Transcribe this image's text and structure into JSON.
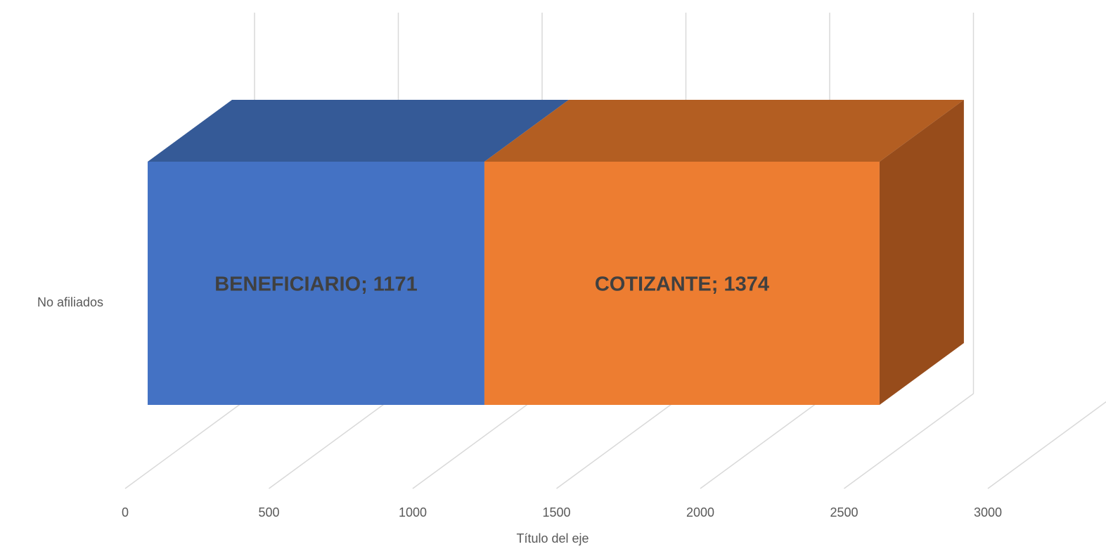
{
  "chart_data": {
    "type": "bar3d_stacked_horizontal",
    "categories": [
      "No afiliados"
    ],
    "series": [
      {
        "name": "BENEFICIARIO",
        "color": "#4472c4",
        "top_color": "#355a97",
        "side_color": "#2f5088",
        "values": [
          1171
        ],
        "value_labels": [
          "BENEFICIARIO; 1171"
        ]
      },
      {
        "name": "COTIZANTE",
        "color": "#ed7d31",
        "top_color": "#b35e22",
        "side_color": "#974c1b",
        "values": [
          1374
        ],
        "value_labels": [
          "COTIZANTE; 1374"
        ]
      }
    ],
    "xlim": [
      0,
      3000
    ],
    "xticks": [
      0,
      500,
      1000,
      1500,
      2000,
      2500,
      3000
    ],
    "x_axis_label": "Título del eje",
    "grid": true
  }
}
